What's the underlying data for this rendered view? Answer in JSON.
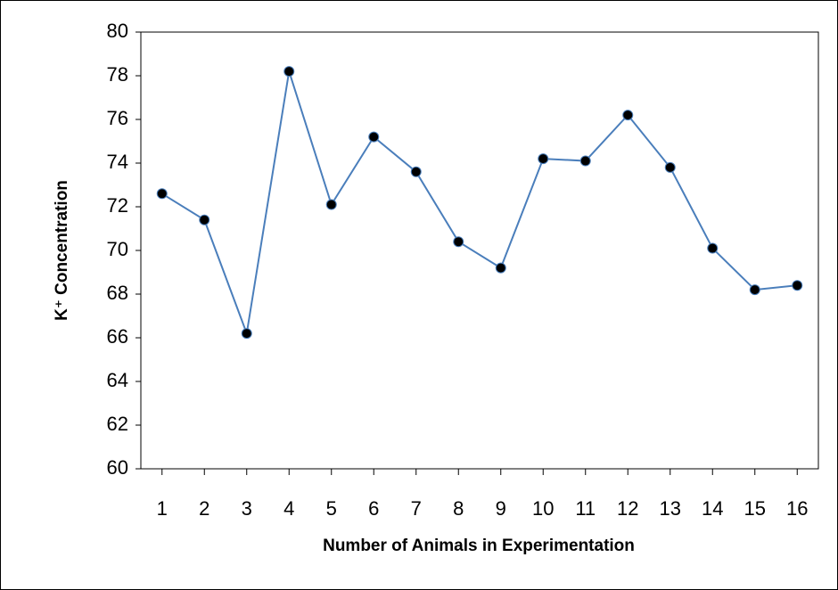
{
  "chart_data": {
    "type": "line",
    "xlabel": "Number of Animals in Experimentation",
    "ylabel": "K⁺ Concentration",
    "categories": [
      "1",
      "2",
      "3",
      "4",
      "5",
      "6",
      "7",
      "8",
      "9",
      "10",
      "11",
      "12",
      "13",
      "14",
      "15",
      "16"
    ],
    "series": [
      {
        "color": "#4a7ebb",
        "values": [
          72.6,
          71.4,
          66.2,
          78.2,
          72.1,
          75.2,
          73.6,
          70.4,
          69.2,
          74.2,
          74.1,
          76.2,
          73.8,
          70.1,
          68.2,
          68.4
        ]
      }
    ],
    "marker_color": "#000000",
    "ylim": [
      60,
      80
    ],
    "yticks": [
      60,
      62,
      64,
      66,
      68,
      70,
      72,
      74,
      76,
      78,
      80
    ],
    "grid": false
  }
}
